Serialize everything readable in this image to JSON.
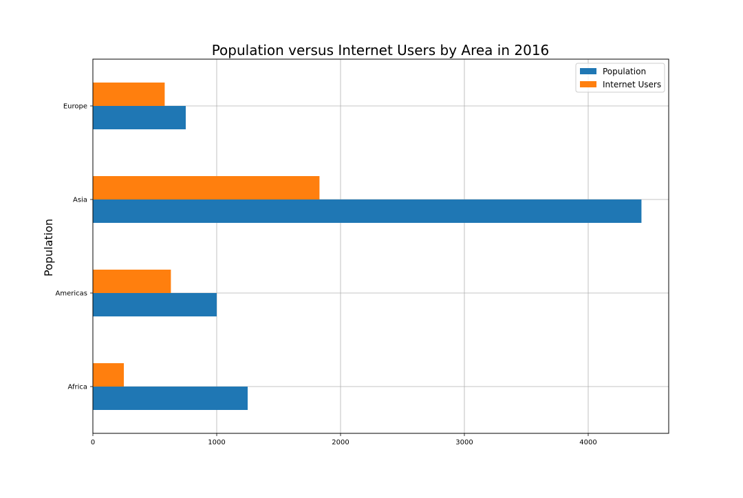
{
  "chart_data": {
    "type": "bar",
    "orientation": "horizontal",
    "title": "Population versus Internet Users by Area in 2016",
    "xlabel": "",
    "ylabel": "Population",
    "categories": [
      "Africa",
      "Americas",
      "Asia",
      "Europe"
    ],
    "series": [
      {
        "name": "Population",
        "color": "#1f77b4",
        "values": [
          1250,
          1000,
          4430,
          750
        ]
      },
      {
        "name": "Internet Users",
        "color": "#ff7f0e",
        "values": [
          250,
          630,
          1830,
          580
        ]
      }
    ],
    "xlim": [
      0,
      4650
    ],
    "xticks": [
      0,
      1000,
      2000,
      3000,
      4000
    ],
    "xtick_labels": [
      "0",
      "1000",
      "2000",
      "3000",
      "4000"
    ],
    "grid": true,
    "legend_position": "top-right"
  }
}
